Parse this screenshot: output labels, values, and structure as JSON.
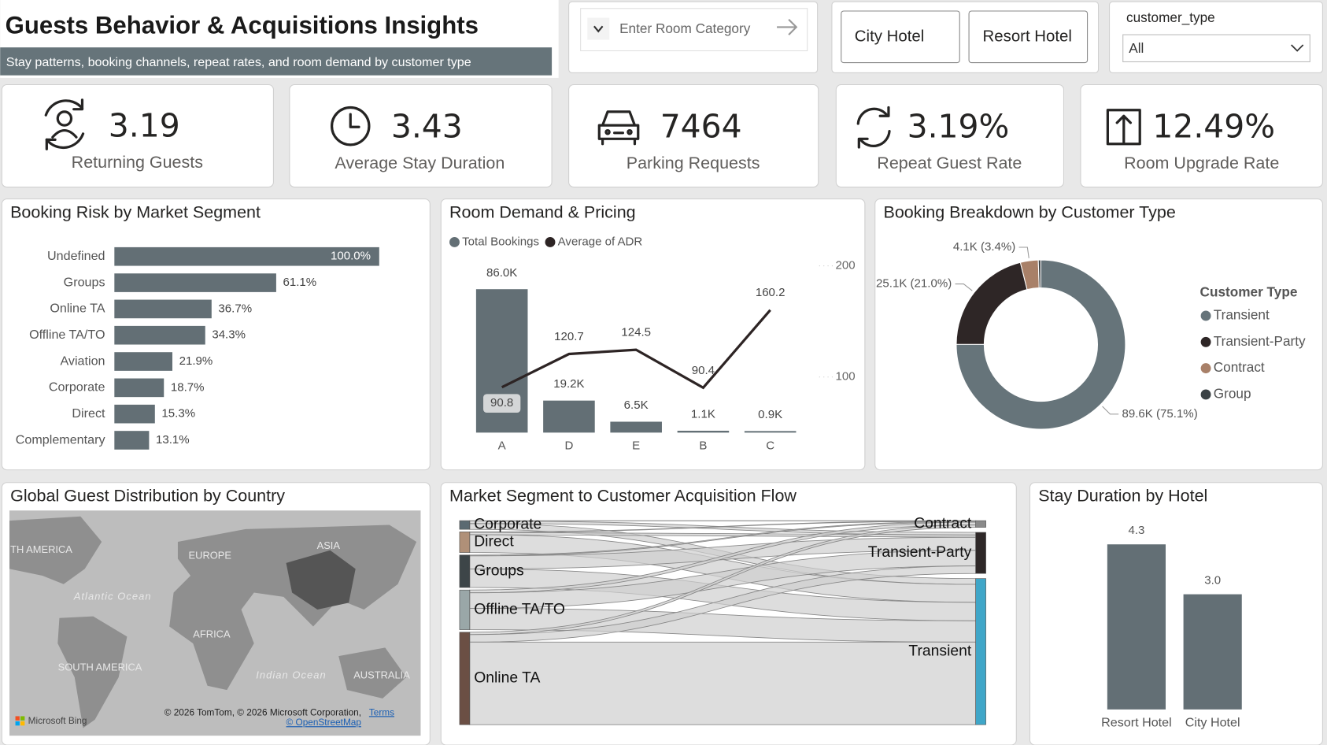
{
  "header": {
    "title": "Guests Behavior & Acquisitions Insights",
    "subtitle": "Stay patterns, booking channels, repeat rates, and room demand by customer type"
  },
  "filters": {
    "room_category": {
      "placeholder": "Enter Room Category"
    },
    "hotel": [
      "City Hotel",
      "Resort Hotel"
    ],
    "customer_type": {
      "title": "customer_type",
      "value": "All"
    }
  },
  "kpis": [
    {
      "value": "3.19",
      "label": "Returning Guests"
    },
    {
      "value": "3.43",
      "label": "Average Stay Duration"
    },
    {
      "value": "7464",
      "label": "Parking Requests"
    },
    {
      "value": "3.19%",
      "label": "Repeat Guest Rate"
    },
    {
      "value": "12.49%",
      "label": "Room Upgrade Rate"
    }
  ],
  "chart_data": [
    {
      "type": "hbar",
      "title": "Booking Risk by Market Segment",
      "categories": [
        "Undefined",
        "Groups",
        "Online TA",
        "Offline TA/TO",
        "Aviation",
        "Corporate",
        "Direct",
        "Complementary"
      ],
      "values": [
        100.0,
        61.1,
        36.7,
        34.3,
        21.9,
        18.7,
        15.3,
        13.1
      ],
      "value_labels": [
        "100.0%",
        "61.1%",
        "36.7%",
        "34.3%",
        "21.9%",
        "18.7%",
        "15.3%",
        "13.1%"
      ],
      "color": "#636f75"
    },
    {
      "type": "combo",
      "title": "Room Demand & Pricing",
      "categories": [
        "A",
        "D",
        "E",
        "B",
        "C"
      ],
      "series": [
        {
          "name": "Total Bookings",
          "color": "#636f75",
          "values": [
            85994,
            19201,
            6535,
            1118,
            932
          ],
          "value_labels": [
            "86.0K",
            "19.2K",
            "6.5K",
            "1.1K",
            "0.9K"
          ]
        },
        {
          "name": "Average of ADR",
          "color": "#2d2424",
          "axis": "y2",
          "values": [
            90.8,
            120.7,
            124.5,
            90.4,
            160.2
          ]
        }
      ],
      "ylim": [
        0,
        100000
      ],
      "y2lim": [
        50,
        200
      ],
      "y2ticks": [
        100,
        200
      ]
    },
    {
      "type": "donut",
      "title": "Booking Breakdown by Customer Type",
      "legend_title": "Customer Type",
      "categories": [
        "Transient",
        "Transient-Party",
        "Contract",
        "Group"
      ],
      "values": [
        89613,
        25124,
        4076,
        577
      ],
      "value_labels": [
        "89.6K (75.1%)",
        "25.1K (21.0%)",
        "4.1K (3.4%)",
        null
      ],
      "colors": [
        "#66747a",
        "#2e2626",
        "#a88068",
        "#3b4245"
      ]
    },
    {
      "type": "map",
      "title": "Global Guest Distribution by Country",
      "labels": [
        "TH AMERICA",
        "EUROPE",
        "ASIA",
        "Atlantic Ocean",
        "AFRICA",
        "SOUTH AMERICA",
        "Indian Ocean",
        "AUSTRALIA"
      ],
      "attribution": [
        "© 2026 TomTom, © 2026 Microsoft Corporation,",
        "Terms",
        "© OpenStreetMap",
        "Microsoft Bing"
      ]
    },
    {
      "type": "sankey",
      "title": "Market Segment to Customer Acquisition Flow",
      "sources": [
        "Corporate",
        "Direct",
        "Groups",
        "Offline TA/TO",
        "Online TA"
      ],
      "targets": [
        "Contract",
        "Transient-Party",
        "Transient"
      ],
      "flows": [
        [
          150,
          1600,
          3545
        ],
        [
          250,
          1400,
          10956
        ],
        [
          500,
          8000,
          11311
        ],
        [
          1700,
          9500,
          13019
        ],
        [
          1450,
          4600,
          50427
        ]
      ],
      "source_colors": [
        "#5b6a72",
        "#b09078",
        "#3d4548",
        "#9aa7a8",
        "#6b4f44"
      ],
      "target_colors": [
        "#8a8a8a",
        "#2e2828",
        "#3fa6c8"
      ]
    },
    {
      "type": "bar",
      "title": "Stay Duration by Hotel",
      "categories": [
        "Resort Hotel",
        "City Hotel"
      ],
      "values": [
        4.3,
        3.0
      ],
      "value_labels": [
        "4.3",
        "3.0"
      ],
      "color": "#636f75"
    }
  ]
}
